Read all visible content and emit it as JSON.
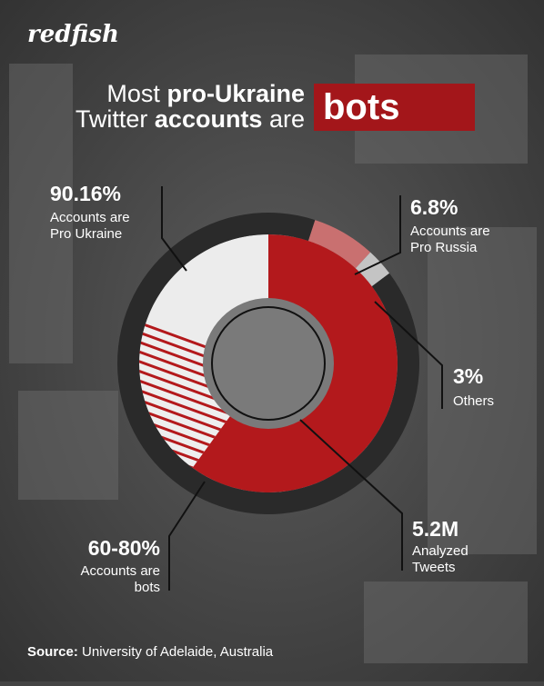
{
  "logo": "redfish",
  "chart_data": {
    "type": "donut",
    "title": {
      "line1": [
        "Most",
        "pro-Ukraine"
      ],
      "line2": [
        "Twitter",
        "accounts",
        "are"
      ],
      "highlight": "bots"
    },
    "values": [
      90.16,
      6.8,
      3
    ],
    "value_labels": [
      "90.16%",
      "6.8%",
      "3%"
    ],
    "label_lines": [
      [
        "Accounts are",
        "Pro Ukraine"
      ],
      [
        "Accounts are",
        "Pro Russia"
      ],
      [
        "Others"
      ]
    ],
    "colors": [
      "#2a2a2a",
      "#c97070",
      "#c4c4c4"
    ],
    "bots": {
      "value_label": "60-80%",
      "range": [
        60,
        80
      ],
      "label_lines": [
        "Accounts are",
        "bots"
      ],
      "color": "#b3191c"
    },
    "center": {
      "value_label": "5.2M",
      "label_lines": [
        "Analyzed",
        "Tweets"
      ]
    }
  },
  "source": {
    "label": "Source:",
    "text": "University of Adelaide, Australia"
  }
}
